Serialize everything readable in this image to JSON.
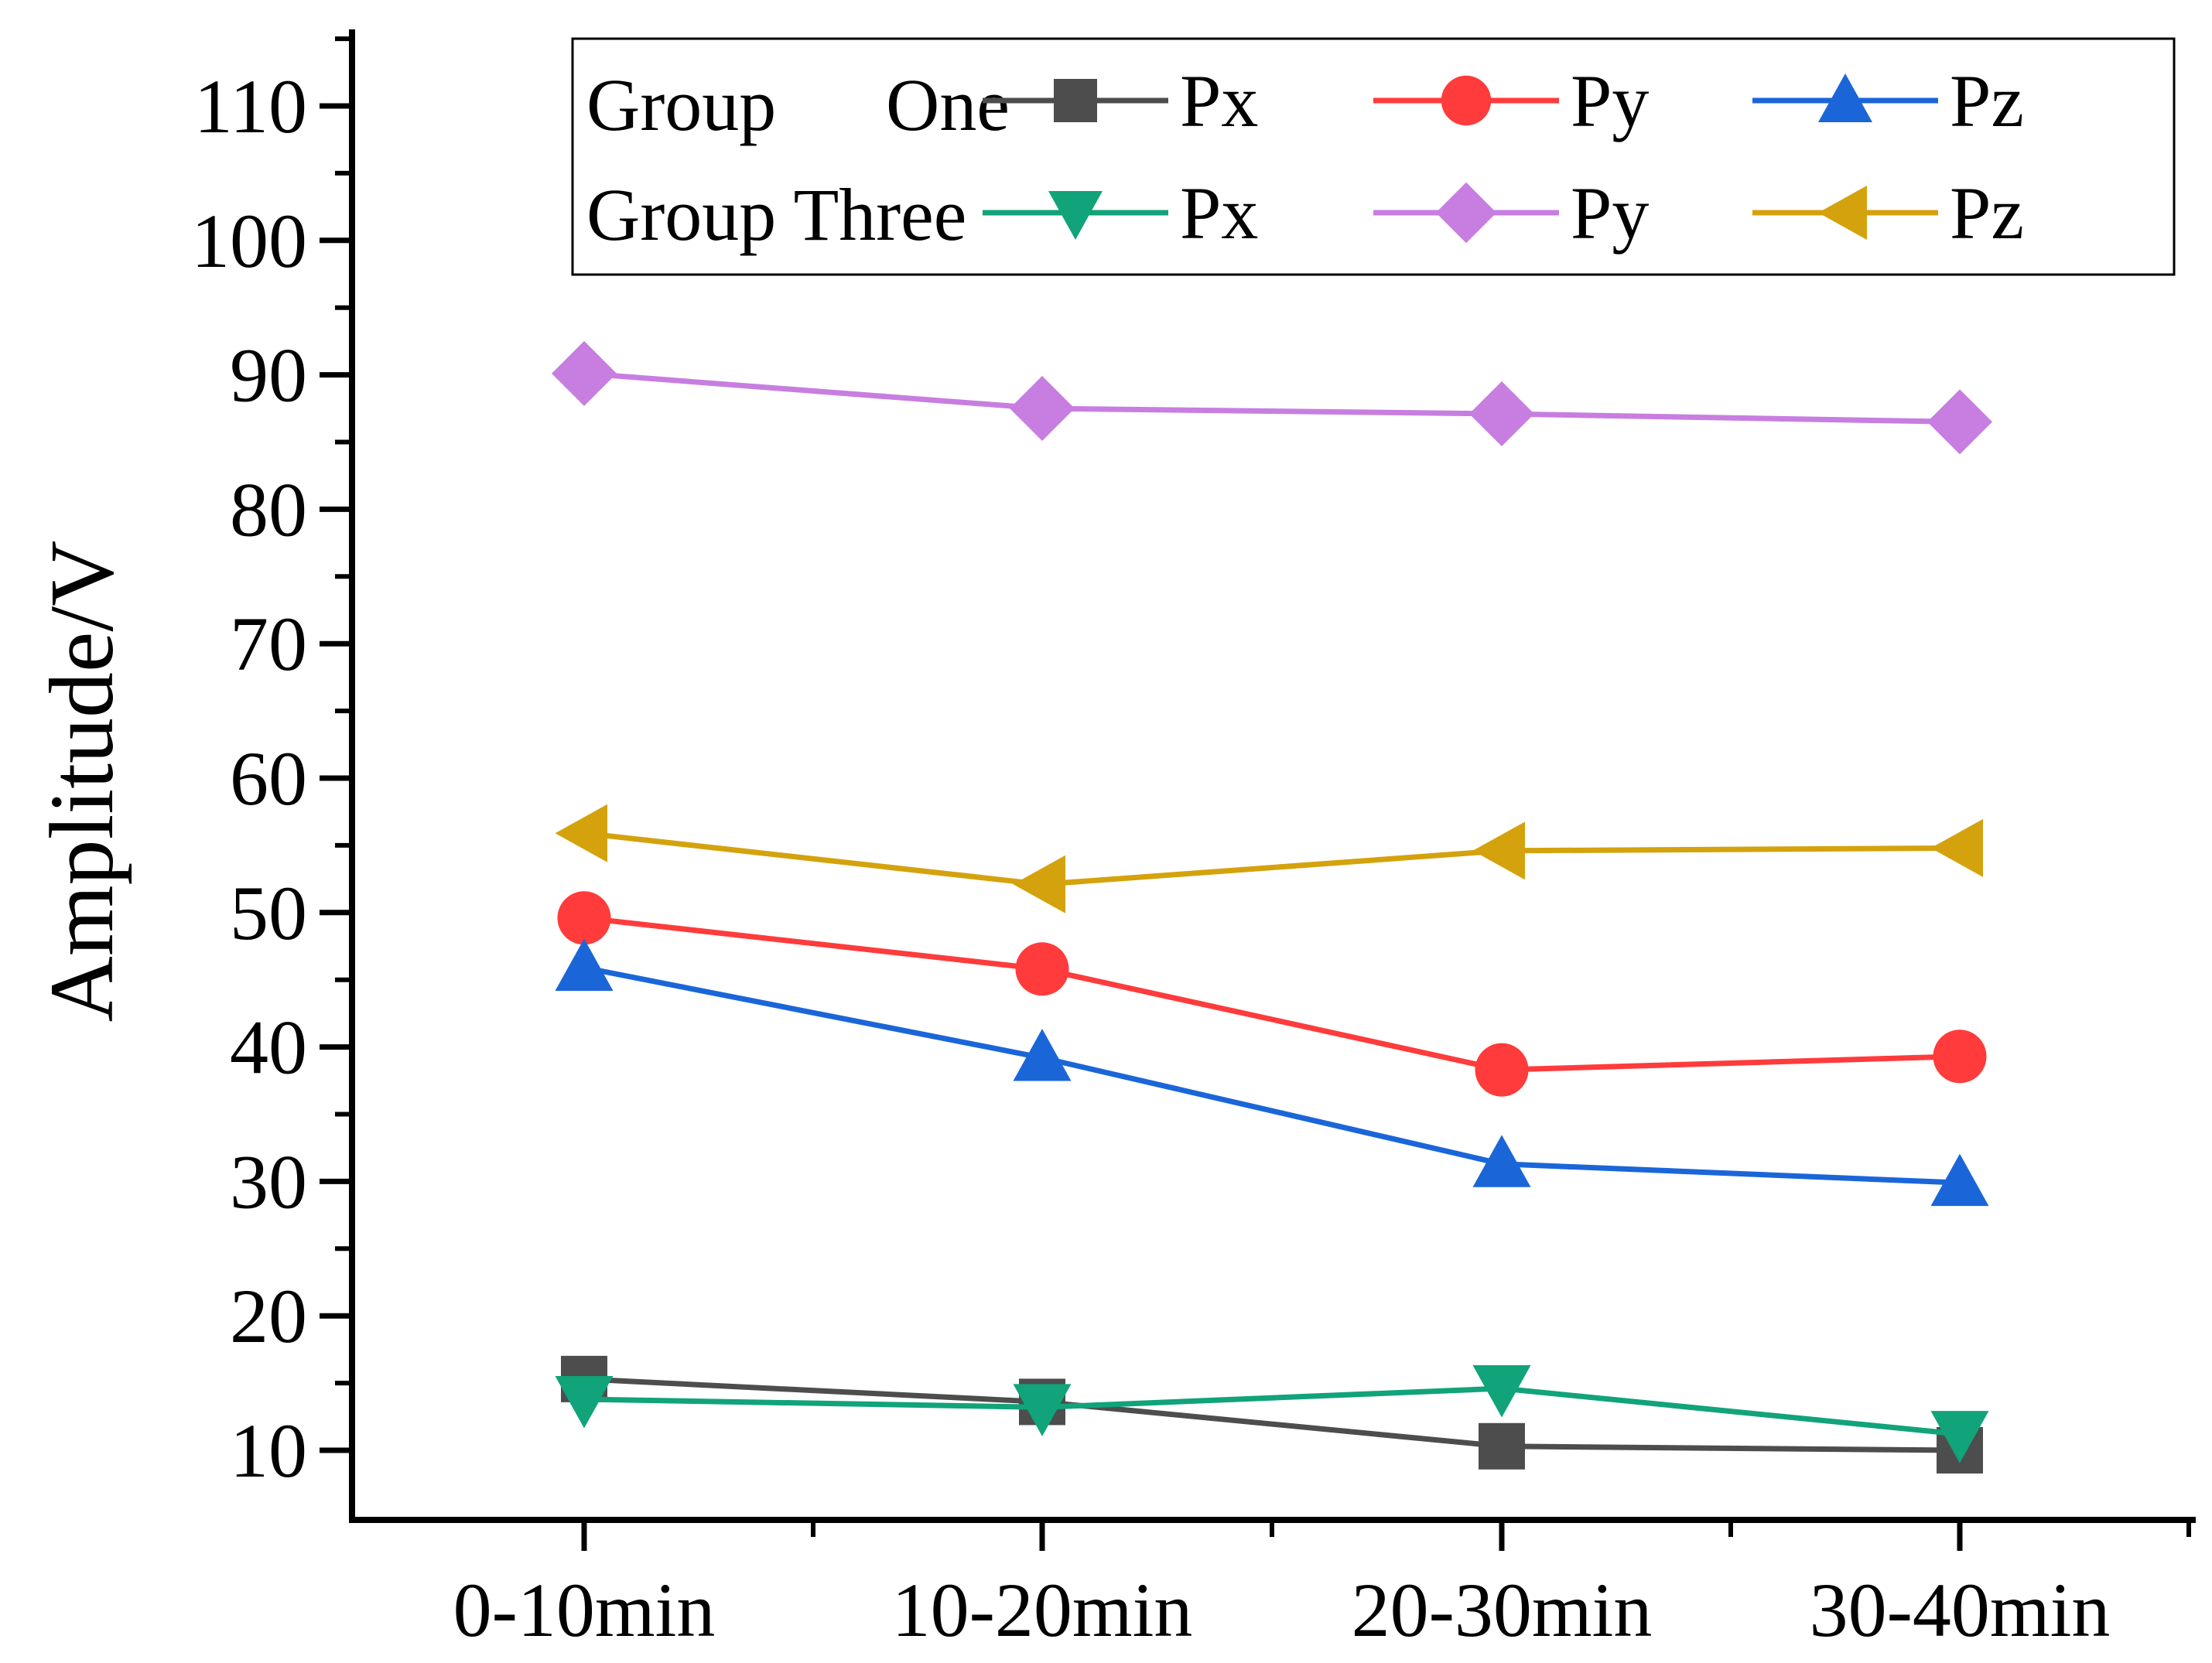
{
  "chart_data": {
    "type": "line",
    "title": "",
    "xlabel": "",
    "ylabel": "Amplitude/V",
    "categories": [
      "0-10min",
      "10-20min",
      "20-30min",
      "30-40min"
    ],
    "ylim": [
      5,
      115
    ],
    "yticks": [
      10,
      20,
      30,
      40,
      50,
      60,
      70,
      80,
      90,
      100,
      110
    ],
    "ytick_labels": [
      "10",
      "20",
      "30",
      "40",
      "50",
      "60",
      "70",
      "80",
      "90",
      "100",
      "110"
    ],
    "grid": false,
    "legend_position": "top-right",
    "legend": {
      "groups": [
        {
          "label": "Group One",
          "words": [
            "Group",
            "One"
          ]
        },
        {
          "label": "Group Three",
          "words": [
            "Group Three"
          ]
        }
      ]
    },
    "series": [
      {
        "name": "Px",
        "group": "Group One",
        "color": "#4d4d4d",
        "marker": "square",
        "values": [
          15.3,
          13.6,
          10.3,
          10.0
        ]
      },
      {
        "name": "Py",
        "group": "Group One",
        "color": "#ff3b3b",
        "marker": "circle",
        "values": [
          49.6,
          45.8,
          38.3,
          39.3
        ]
      },
      {
        "name": "Pz",
        "group": "Group One",
        "color": "#1a66d9",
        "marker": "triangle-up",
        "values": [
          45.9,
          39.2,
          31.3,
          29.9
        ]
      },
      {
        "name": "Px",
        "group": "Group Three",
        "color": "#11a37a",
        "marker": "triangle-down",
        "values": [
          13.8,
          13.2,
          14.6,
          11.2
        ]
      },
      {
        "name": "Py",
        "group": "Group Three",
        "color": "#c77ee0",
        "marker": "diamond",
        "values": [
          90.1,
          87.5,
          87.1,
          86.5
        ]
      },
      {
        "name": "Pz",
        "group": "Group Three",
        "color": "#d4a20c",
        "marker": "triangle-left",
        "values": [
          55.9,
          52.1,
          54.6,
          54.8
        ]
      }
    ]
  }
}
